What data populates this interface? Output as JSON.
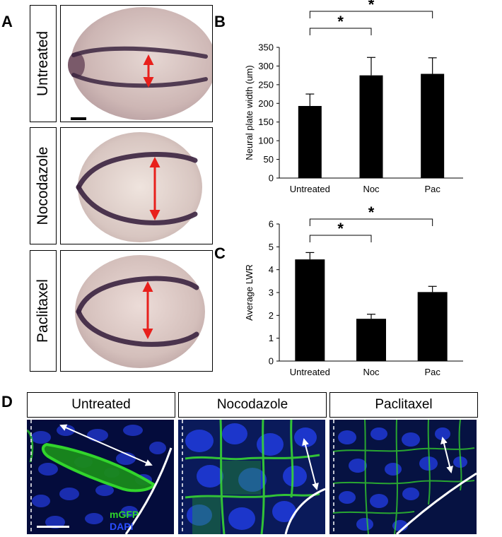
{
  "panel_letters": {
    "a": "A",
    "b": "B",
    "c": "C",
    "d": "D"
  },
  "treatments": [
    "Untreated",
    "Nocodazole",
    "Paclitaxel"
  ],
  "channel_labels": {
    "green": "mGFP",
    "blue": "DAPI"
  },
  "colors": {
    "arrow": "#e8201c",
    "gfp": "#2fd62a",
    "dapi": "#1430d8",
    "stain": "#3b2440"
  },
  "chart_data": [
    {
      "type": "bar",
      "panel": "B",
      "categories": [
        "Untreated",
        "Noc",
        "Pac"
      ],
      "values": [
        193,
        275,
        279
      ],
      "errors": [
        32,
        48,
        43
      ],
      "ylabel": "Neural plate width (um)",
      "ylim": [
        0,
        350
      ],
      "yticks": [
        0,
        50,
        100,
        150,
        200,
        250,
        300,
        350
      ],
      "significance": [
        {
          "from": "Untreated",
          "to": "Noc",
          "label": "*"
        },
        {
          "from": "Untreated",
          "to": "Pac",
          "label": "*"
        }
      ]
    },
    {
      "type": "bar",
      "panel": "C",
      "categories": [
        "Untreated",
        "Noc",
        "Pac"
      ],
      "values": [
        4.45,
        1.85,
        3.02
      ],
      "errors": [
        0.3,
        0.2,
        0.25
      ],
      "ylabel": "Average LWR",
      "ylim": [
        0,
        6
      ],
      "yticks": [
        0,
        1,
        2,
        3,
        4,
        5,
        6
      ],
      "significance": [
        {
          "from": "Untreated",
          "to": "Noc",
          "label": "*"
        },
        {
          "from": "Untreated",
          "to": "Pac",
          "label": "*"
        }
      ]
    }
  ]
}
